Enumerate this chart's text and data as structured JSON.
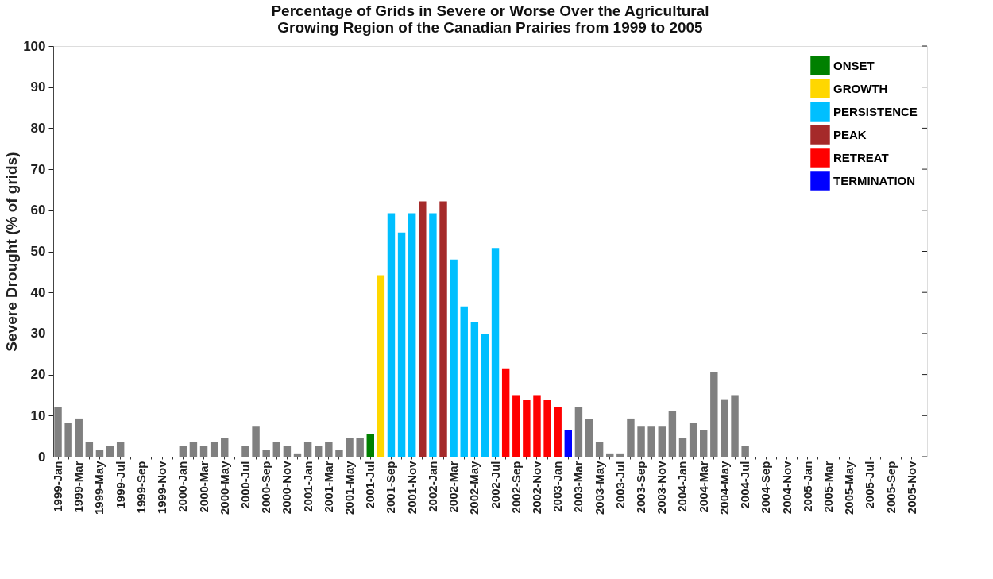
{
  "chart_data": {
    "type": "bar",
    "title": "Percentage of Grids in Severe or Worse Over the Agricultural\nGrowing Region of the Canadian Prairies from 1999 to 2005",
    "ylabel": "Severe Drought (% of grids)",
    "categories": [
      "1999-Jan",
      null,
      "1999-Mar",
      null,
      "1999-May",
      null,
      "1999-Jul",
      null,
      "1999-Sep",
      null,
      "1999-Nov",
      null,
      "2000-Jan",
      null,
      "2000-Mar",
      null,
      "2000-May",
      null,
      "2000-Jul",
      null,
      "2000-Sep",
      null,
      "2000-Nov",
      null,
      "2001-Jan",
      null,
      "2001-Mar",
      null,
      "2001-May",
      null,
      "2001-Jul",
      null,
      "2001-Sep",
      null,
      "2001-Nov",
      null,
      "2002-Jan",
      null,
      "2002-Mar",
      null,
      "2002-May",
      null,
      "2002-Jul",
      null,
      "2002-Sep",
      null,
      "2002-Nov",
      null,
      "2003-Jan",
      null,
      "2003-Mar",
      null,
      "2003-May",
      null,
      "2003-Jul",
      null,
      "2003-Sep",
      null,
      "2003-Nov",
      null,
      "2004-Jan",
      null,
      "2004-Mar",
      null,
      "2004-May",
      null,
      "2004-Jul",
      null,
      "2004-Sep",
      null,
      "2004-Nov",
      null,
      "2005-Jan",
      null,
      "2005-Mar",
      null,
      "2005-May",
      null,
      "2005-Jul",
      null,
      "2005-Sep",
      null,
      "2005-Nov",
      null
    ],
    "series": [
      {
        "color": "#808080",
        "values": [
          12,
          8.3,
          9.3,
          3.6,
          1.7,
          2.7,
          3.6,
          0,
          0,
          0,
          0,
          0,
          2.7,
          3.6,
          2.7,
          3.6,
          4.6,
          0,
          2.7,
          7.5,
          1.7,
          3.6,
          2.7,
          0.8,
          3.6,
          2.7,
          3.6,
          1.7,
          4.6,
          4.6,
          null,
          null,
          null,
          null,
          null,
          null,
          null,
          null,
          null,
          null,
          null,
          null,
          null,
          null,
          null,
          null,
          null,
          null,
          null,
          null,
          12,
          9.2,
          3.5,
          0.8,
          0.8,
          9.3,
          7.5,
          7.5,
          7.5,
          11.2,
          4.5,
          8.3,
          6.5,
          20.6,
          14,
          15,
          2.7,
          0,
          0,
          0,
          0,
          0,
          0,
          0,
          0,
          0,
          0,
          0,
          0,
          0,
          0,
          0,
          0,
          0
        ]
      },
      {
        "name": "ONSET",
        "color": "#008000",
        "values": [
          null,
          null,
          null,
          null,
          null,
          null,
          null,
          null,
          null,
          null,
          null,
          null,
          null,
          null,
          null,
          null,
          null,
          null,
          null,
          null,
          null,
          null,
          null,
          null,
          null,
          null,
          null,
          null,
          null,
          null,
          5.5,
          null,
          null,
          null,
          null,
          null,
          null,
          null,
          null,
          null,
          null,
          null,
          null,
          null,
          null,
          null,
          null,
          null,
          null,
          null,
          null,
          null,
          null,
          null,
          null,
          null,
          null,
          null,
          null,
          null,
          null,
          null,
          null,
          null,
          null,
          null,
          null,
          null,
          null,
          null,
          null,
          null,
          null,
          null,
          null,
          null,
          null,
          null,
          null,
          null,
          null,
          null,
          null,
          null
        ]
      },
      {
        "name": "GROWTH",
        "color": "#ffd700",
        "values": [
          null,
          null,
          null,
          null,
          null,
          null,
          null,
          null,
          null,
          null,
          null,
          null,
          null,
          null,
          null,
          null,
          null,
          null,
          null,
          null,
          null,
          null,
          null,
          null,
          null,
          null,
          null,
          null,
          null,
          null,
          null,
          44.2,
          null,
          null,
          null,
          null,
          null,
          null,
          null,
          null,
          null,
          null,
          null,
          null,
          null,
          null,
          null,
          null,
          null,
          null,
          null,
          null,
          null,
          null,
          null,
          null,
          null,
          null,
          null,
          null,
          null,
          null,
          null,
          null,
          null,
          null,
          null,
          null,
          null,
          null,
          null,
          null,
          null,
          null,
          null,
          null,
          null,
          null,
          null,
          null,
          null,
          null,
          null,
          null
        ]
      },
      {
        "name": "PERSISTENCE",
        "color": "#00bfff",
        "values": [
          null,
          null,
          null,
          null,
          null,
          null,
          null,
          null,
          null,
          null,
          null,
          null,
          null,
          null,
          null,
          null,
          null,
          null,
          null,
          null,
          null,
          null,
          null,
          null,
          null,
          null,
          null,
          null,
          null,
          null,
          null,
          null,
          59.3,
          54.6,
          59.3,
          null,
          59.3,
          null,
          48,
          36.6,
          32.9,
          30,
          50.8,
          null,
          null,
          null,
          null,
          null,
          null,
          null,
          null,
          null,
          null,
          null,
          null,
          null,
          null,
          null,
          null,
          null,
          null,
          null,
          null,
          null,
          null,
          null,
          null,
          null,
          null,
          null,
          null,
          null,
          null,
          null,
          null,
          null,
          null,
          null,
          null,
          null,
          null,
          null,
          null,
          null
        ]
      },
      {
        "name": "PEAK",
        "color": "#a52a2a",
        "values": [
          null,
          null,
          null,
          null,
          null,
          null,
          null,
          null,
          null,
          null,
          null,
          null,
          null,
          null,
          null,
          null,
          null,
          null,
          null,
          null,
          null,
          null,
          null,
          null,
          null,
          null,
          null,
          null,
          null,
          null,
          null,
          null,
          null,
          null,
          null,
          62.2,
          null,
          62.2,
          null,
          null,
          null,
          null,
          null,
          null,
          null,
          null,
          null,
          null,
          null,
          null,
          null,
          null,
          null,
          null,
          null,
          null,
          null,
          null,
          null,
          null,
          null,
          null,
          null,
          null,
          null,
          null,
          null,
          null,
          null,
          null,
          null,
          null,
          null,
          null,
          null,
          null,
          null,
          null,
          null,
          null,
          null,
          null,
          null,
          null
        ]
      },
      {
        "name": "RETREAT",
        "color": "#ff0000",
        "values": [
          null,
          null,
          null,
          null,
          null,
          null,
          null,
          null,
          null,
          null,
          null,
          null,
          null,
          null,
          null,
          null,
          null,
          null,
          null,
          null,
          null,
          null,
          null,
          null,
          null,
          null,
          null,
          null,
          null,
          null,
          null,
          null,
          null,
          null,
          null,
          null,
          null,
          null,
          null,
          null,
          null,
          null,
          null,
          21.5,
          15,
          13.9,
          15,
          13.9,
          12.1,
          null,
          null,
          null,
          null,
          null,
          null,
          null,
          null,
          null,
          null,
          null,
          null,
          null,
          null,
          null,
          null,
          null,
          null,
          null,
          null,
          null,
          null,
          null,
          null,
          null,
          null,
          null,
          null,
          null,
          null,
          null,
          null,
          null,
          null,
          null
        ]
      },
      {
        "name": "TERMINATION",
        "color": "#0000ff",
        "values": [
          null,
          null,
          null,
          null,
          null,
          null,
          null,
          null,
          null,
          null,
          null,
          null,
          null,
          null,
          null,
          null,
          null,
          null,
          null,
          null,
          null,
          null,
          null,
          null,
          null,
          null,
          null,
          null,
          null,
          null,
          null,
          null,
          null,
          null,
          null,
          null,
          null,
          null,
          null,
          null,
          null,
          null,
          null,
          null,
          null,
          null,
          null,
          null,
          null,
          6.5,
          null,
          null,
          null,
          null,
          null,
          null,
          null,
          null,
          null,
          null,
          null,
          null,
          null,
          null,
          null,
          null,
          null,
          null,
          null,
          null,
          null,
          null,
          null,
          null,
          null,
          null,
          null,
          null,
          null,
          null,
          null,
          null,
          null,
          null
        ]
      }
    ],
    "ylim": [
      0,
      100
    ],
    "yticks": [
      0,
      10,
      20,
      30,
      40,
      50,
      60,
      70,
      80,
      90,
      100
    ],
    "grid": false,
    "legend": "top right"
  }
}
